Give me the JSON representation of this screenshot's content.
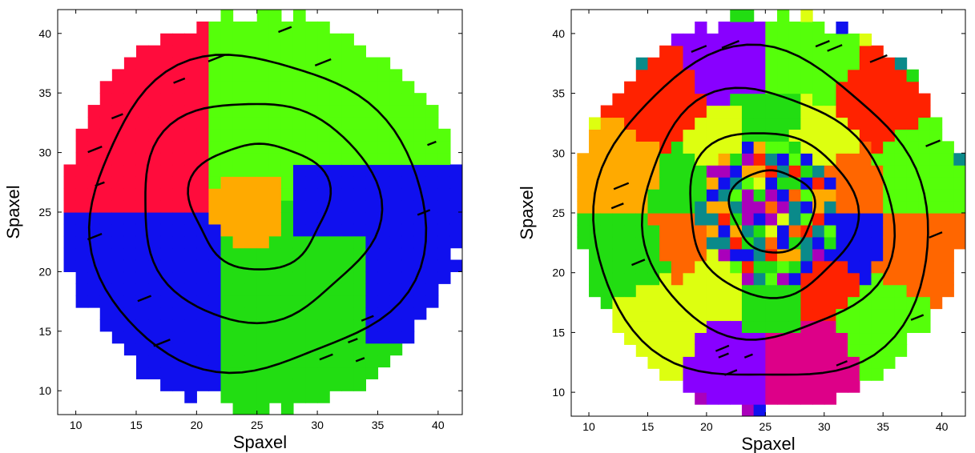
{
  "chart_data": [
    {
      "type": "heatmap",
      "title": "",
      "xlabel": "Spaxel",
      "ylabel": "Spaxel",
      "xlim": [
        8.5,
        42
      ],
      "ylim": [
        8,
        42
      ],
      "xticks": [
        10,
        15,
        20,
        25,
        30,
        35,
        40
      ],
      "yticks": [
        10,
        15,
        20,
        25,
        30,
        35,
        40
      ],
      "grid": false,
      "legend": "none",
      "map_center": [
        25.4,
        25.1
      ],
      "map_radius": 16.5,
      "regions": [
        {
          "color": "#ff0c3c",
          "theta_from": 90,
          "theta_to": 180,
          "core": false
        },
        {
          "color": "#55ff0a",
          "theta_from": 15,
          "theta_to": 90,
          "core": false
        },
        {
          "color": "#1010ee",
          "theta_from": -35,
          "theta_to": 15,
          "core": false
        },
        {
          "color": "#22dd12",
          "theta_from": -90,
          "theta_to": -35,
          "core": false
        },
        {
          "color": "#1010ee",
          "theta_from": 180,
          "theta_to": 270,
          "core": false
        },
        {
          "color": "#ffaa00",
          "theta_from": 0,
          "theta_to": 360,
          "core": true
        }
      ],
      "core_box": {
        "x": [
          21.5,
          27.5
        ],
        "y": [
          22.5,
          28.5
        ]
      },
      "contours": [
        {
          "cx": 25.2,
          "cy": 25.6,
          "r": 5.5,
          "wobble": 0.9
        },
        {
          "cx": 25.0,
          "cy": 25.2,
          "r": 9.5,
          "wobble": 1.2
        },
        {
          "cx": 24.8,
          "cy": 24.8,
          "r": 13.5,
          "wobble": 1.5
        }
      ]
    },
    {
      "type": "heatmap",
      "title": "",
      "xlabel": "Spaxel",
      "ylabel": "Spaxel",
      "xlim": [
        8.5,
        42
      ],
      "ylim": [
        8,
        42
      ],
      "xticks": [
        10,
        15,
        20,
        25,
        30,
        35,
        40
      ],
      "yticks": [
        10,
        15,
        20,
        25,
        30,
        35,
        40
      ],
      "grid": false,
      "legend": "none",
      "map_center": [
        25.4,
        25.1
      ],
      "map_radius": 16.5,
      "sector_palette": [
        "#ffaa00",
        "#22dd12",
        "#ff6600",
        "#ff2200",
        "#ddff10",
        "#1010ee",
        "#55ff0a",
        "#22dd12",
        "#8800ff",
        "#aa00bb",
        "#dd0088",
        "#ff6600",
        "#ff2200",
        "#ddff10",
        "#ffaa00",
        "#55ff0a"
      ],
      "ring_boundaries": [
        3,
        6,
        10,
        16.5
      ],
      "contours": [
        {
          "cx": 25.6,
          "cy": 25.2,
          "r": 3.5,
          "wobble": 0.5
        },
        {
          "cx": 25.4,
          "cy": 25.0,
          "r": 7.0,
          "wobble": 0.9
        },
        {
          "cx": 25.0,
          "cy": 24.8,
          "r": 10.5,
          "wobble": 1.2
        },
        {
          "cx": 24.6,
          "cy": 24.4,
          "r": 14.0,
          "wobble": 1.6
        }
      ]
    }
  ]
}
